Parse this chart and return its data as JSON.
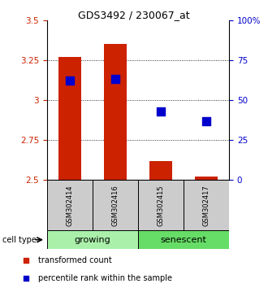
{
  "title": "GDS3492 / 230067_at",
  "samples": [
    "GSM302414",
    "GSM302416",
    "GSM302415",
    "GSM302417"
  ],
  "group_labels": [
    "growing",
    "senescent"
  ],
  "red_values": [
    3.27,
    3.35,
    2.62,
    2.52
  ],
  "blue_values": [
    3.12,
    3.13,
    2.93,
    2.87
  ],
  "y_min": 2.5,
  "y_max": 3.5,
  "y_ticks": [
    2.5,
    2.75,
    3.0,
    3.25,
    3.5
  ],
  "y_tick_labels": [
    "2.5",
    "2.75",
    "3",
    "3.25",
    "3.5"
  ],
  "right_y_pcts": [
    0,
    25,
    50,
    75,
    100
  ],
  "right_y_labels": [
    "0",
    "25",
    "50",
    "75",
    "100%"
  ],
  "bar_width": 0.5,
  "blue_marker_size": 45,
  "growing_color": "#aaf0aa",
  "senescent_color": "#66dd66",
  "sample_box_color": "#cccccc",
  "red_color": "#cc2200",
  "blue_color": "#0000cc",
  "legend_red": "transformed count",
  "legend_blue": "percentile rank within the sample",
  "cell_type_label": "cell type",
  "title_fontsize": 9,
  "tick_fontsize": 7.5,
  "label_fontsize": 7,
  "sample_fontsize": 6,
  "group_fontsize": 8
}
